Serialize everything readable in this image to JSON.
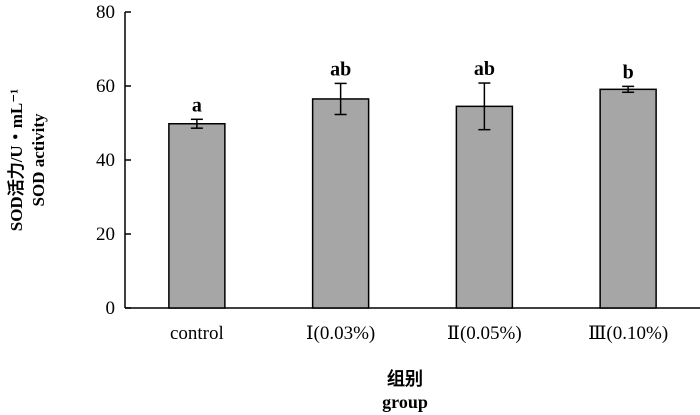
{
  "chart_data": {
    "type": "bar",
    "categories": [
      "control",
      "Ⅰ(0.03%)",
      "Ⅱ(0.05%)",
      "Ⅲ(0.10%)"
    ],
    "values": [
      49.8,
      56.5,
      54.5,
      59.1
    ],
    "errors": [
      1.2,
      4.2,
      6.3,
      0.8
    ],
    "significance": [
      "a",
      "ab",
      "ab",
      "b"
    ],
    "ylim": [
      0,
      80
    ],
    "yticks": [
      0,
      20,
      40,
      60,
      80
    ],
    "ylabel_cn": "SOD活力/U・mL⁻¹",
    "ylabel_en": "SOD activity",
    "xlabel_cn": "组别",
    "xlabel_en": "group",
    "bar_color": "#a6a6a6",
    "grid": false
  }
}
